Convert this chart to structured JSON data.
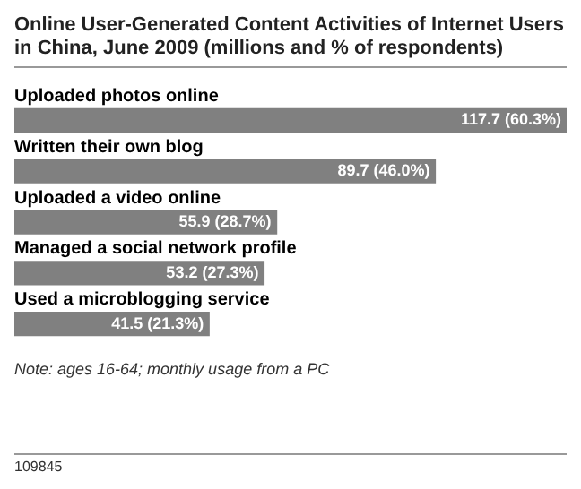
{
  "chart_data": {
    "type": "bar",
    "orientation": "horizontal",
    "title": "Online User-Generated Content Activities of Internet Users in China, June 2009 (millions and % of respondents)",
    "categories": [
      "Uploaded photos online",
      "Written their own blog",
      "Uploaded a video online",
      "Managed a social network profile",
      "Used a microblogging service"
    ],
    "values": [
      117.7,
      89.7,
      55.9,
      53.2,
      41.5
    ],
    "value_labels": [
      "117.7 (60.3%)",
      "89.7 (46.0%)",
      "55.9 (28.7%)",
      "53.2 (27.3%)",
      "41.5 (21.3%)"
    ],
    "color": "#808080",
    "annotations": [
      "Note: ages 16-64; monthly usage from a PC",
      "109845"
    ]
  }
}
